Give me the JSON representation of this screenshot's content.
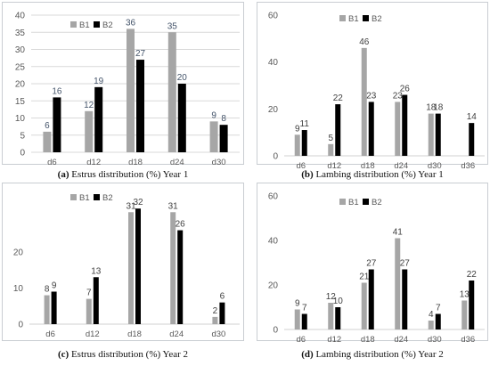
{
  "captions": [
    {
      "tag": "(a)",
      "text": " Estrus distribution (%) Year 1"
    },
    {
      "tag": "(b)",
      "text": " Lambing distribution (%) Year 1"
    },
    {
      "tag": "(c)",
      "text": " Estrus distribution (%) Year 2"
    },
    {
      "tag": "(d)",
      "text": " Lambing distribution (%) Year 2"
    }
  ],
  "colors": {
    "B1": "#a6a6a6",
    "B2": "#000000",
    "label_a": "#44546a",
    "label_other": "#404040",
    "axis_text": "#595959"
  },
  "chart_data": [
    {
      "type": "bar",
      "title": "",
      "categories": [
        "d6",
        "d12",
        "d18",
        "d24",
        "d30"
      ],
      "series": [
        {
          "name": "B1",
          "values": [
            6,
            12,
            36,
            35,
            9
          ]
        },
        {
          "name": "B2",
          "values": [
            16,
            19,
            27,
            20,
            8
          ]
        }
      ],
      "ylim": [
        0,
        40
      ],
      "yticks": [
        0,
        5,
        10,
        15,
        20,
        25,
        30,
        35,
        40
      ],
      "grid": true,
      "legend": "top-left"
    },
    {
      "type": "bar",
      "title": "",
      "categories": [
        "d6",
        "d12",
        "d18",
        "d24",
        "d30",
        "d36"
      ],
      "series": [
        {
          "name": "B1",
          "values": [
            9,
            5,
            46,
            23,
            18,
            null
          ]
        },
        {
          "name": "B2",
          "values": [
            11,
            22,
            23,
            26,
            18,
            14
          ]
        }
      ],
      "ylim": [
        0,
        60
      ],
      "yticks": [
        0,
        20,
        40,
        60
      ],
      "grid": false,
      "legend": "top-center"
    },
    {
      "type": "bar",
      "title": "",
      "categories": [
        "d6",
        "d12",
        "d18",
        "d24",
        "d30"
      ],
      "series": [
        {
          "name": "B1",
          "values": [
            8,
            7,
            31,
            31,
            2
          ]
        },
        {
          "name": "B2",
          "values": [
            9,
            13,
            32,
            26,
            6
          ]
        }
      ],
      "ylim": [
        0,
        36
      ],
      "yticks": [
        0,
        10,
        20
      ],
      "grid": false,
      "legend": "top-left"
    },
    {
      "type": "bar",
      "title": "",
      "categories": [
        "d6",
        "d12",
        "d18",
        "d24",
        "d30",
        "d36"
      ],
      "series": [
        {
          "name": "B1",
          "values": [
            9,
            12,
            21,
            41,
            4,
            13
          ]
        },
        {
          "name": "B2",
          "values": [
            7,
            10,
            27,
            27,
            7,
            22
          ]
        }
      ],
      "ylim": [
        0,
        60
      ],
      "yticks": [
        0,
        20,
        40,
        60
      ],
      "grid": false,
      "legend": "top-center"
    }
  ]
}
